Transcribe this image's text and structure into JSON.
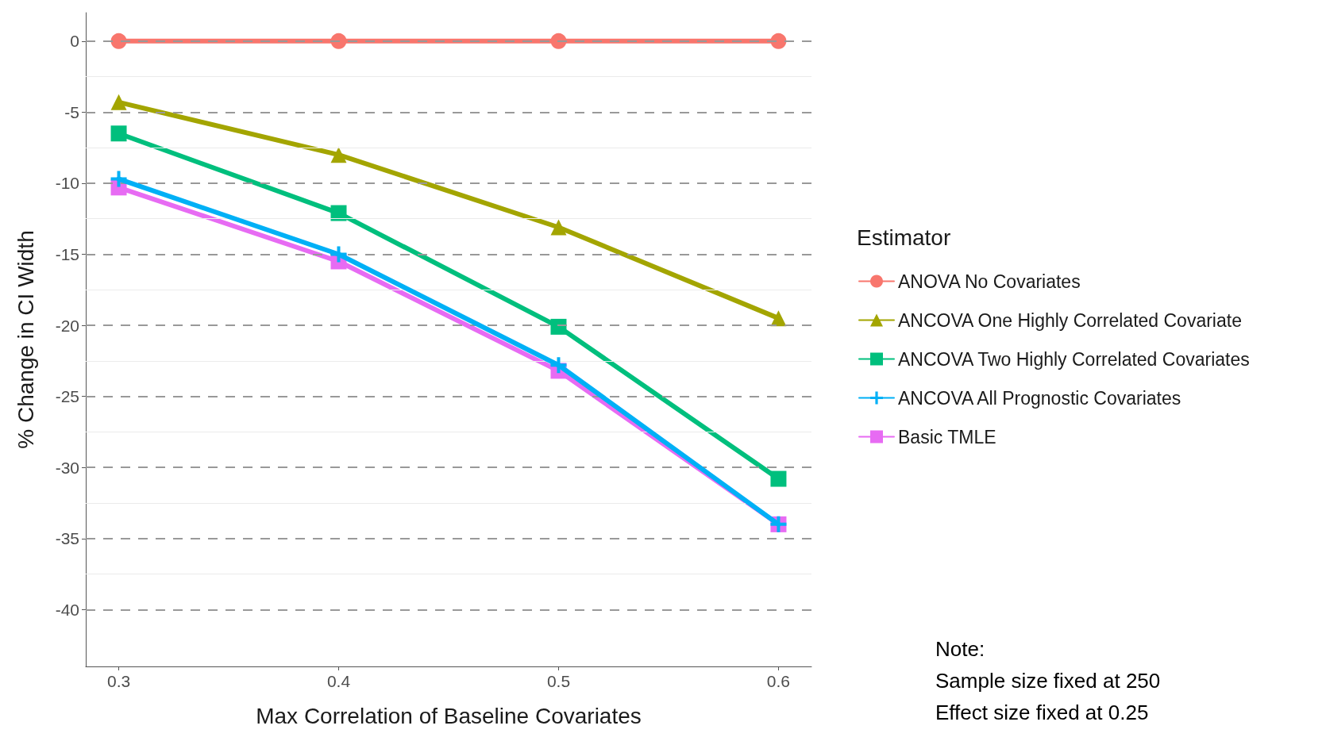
{
  "chart_data": {
    "type": "line",
    "xlabel": "Max Correlation of Baseline Covariates",
    "ylabel": "% Change in CI Width",
    "legend_title": "Estimator",
    "x": [
      0.3,
      0.4,
      0.5,
      0.6
    ],
    "xlim": [
      0.285,
      0.615
    ],
    "xticks": [
      0.3,
      0.4,
      0.5,
      0.6
    ],
    "ylim": [
      -44,
      2
    ],
    "yticks": [
      0,
      -5,
      -10,
      -15,
      -20,
      -25,
      -30,
      -35,
      -40
    ],
    "grid": "y",
    "legend": "right",
    "series": [
      {
        "name": "ANOVA No Covariates",
        "color": "#f8766d",
        "marker": "circle",
        "values": [
          0,
          0,
          0,
          0
        ]
      },
      {
        "name": "ANCOVA One Highly Correlated Covariate",
        "color": "#a3a500",
        "marker": "triangle",
        "values": [
          -4.3,
          -8.0,
          -13.1,
          -19.5
        ]
      },
      {
        "name": "ANCOVA Two Highly Correlated Covariates",
        "color": "#00bf7d",
        "marker": "square",
        "values": [
          -6.5,
          -12.1,
          -20.1,
          -30.8
        ]
      },
      {
        "name": "ANCOVA All Prognostic Covariates",
        "color": "#00b0f6",
        "marker": "cross",
        "values": [
          -9.7,
          -15.0,
          -22.8,
          -34.0
        ]
      },
      {
        "name": "Basic TMLE",
        "color": "#e76bf3",
        "marker": "square",
        "values": [
          -10.3,
          -15.5,
          -23.2,
          -34.0
        ]
      }
    ],
    "annotations": [
      "Note:\nSample size fixed at 250\nEffect size fixed at 0.25"
    ]
  }
}
